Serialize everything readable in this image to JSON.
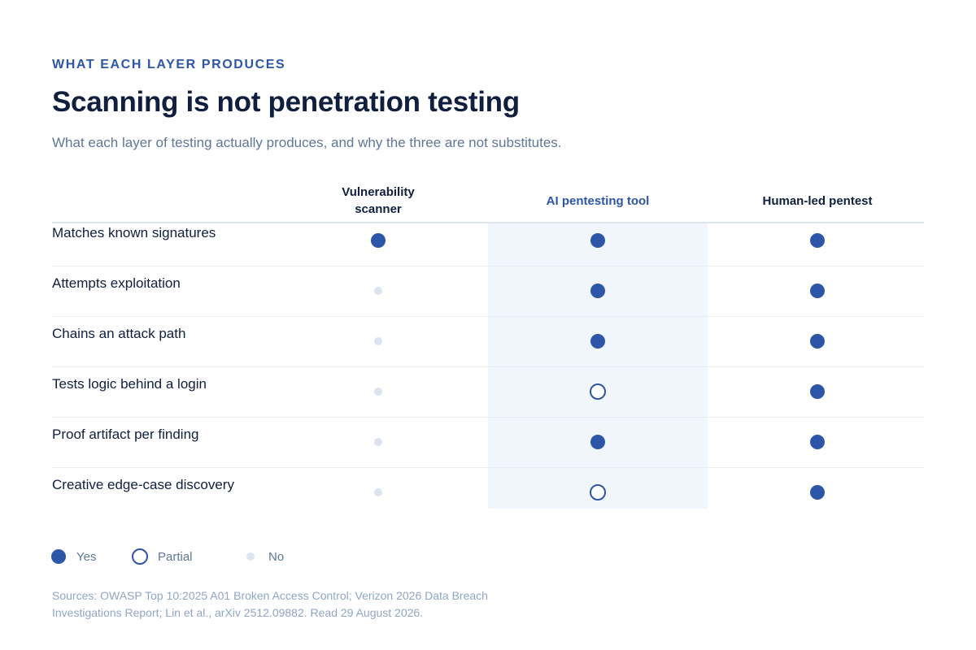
{
  "header": {
    "eyebrow": "WHAT EACH LAYER PRODUCES",
    "title": "Scanning is not penetration testing",
    "subtitle": "What each layer of testing actually produces, and why the three are not substitutes."
  },
  "table": {
    "columns": [
      "Vulnerability scanner",
      "AI pentesting tool",
      "Human-led pentest"
    ],
    "highlighted_column": "AI pentesting tool",
    "rows": [
      {
        "label": "Matches known signatures",
        "values": [
          "yes",
          "yes",
          "yes"
        ]
      },
      {
        "label": "Attempts exploitation",
        "values": [
          "no",
          "yes",
          "yes"
        ]
      },
      {
        "label": "Chains an attack path",
        "values": [
          "no",
          "yes",
          "yes"
        ]
      },
      {
        "label": "Tests logic behind a login",
        "values": [
          "no",
          "partial",
          "yes"
        ]
      },
      {
        "label": "Proof artifact per finding",
        "values": [
          "no",
          "yes",
          "yes"
        ]
      },
      {
        "label": "Creative edge-case discovery",
        "values": [
          "no",
          "partial",
          "yes"
        ]
      }
    ]
  },
  "legend": {
    "yes": "Yes",
    "partial": "Partial",
    "no": "No"
  },
  "sources": "Sources: OWASP Top 10:2025 A01 Broken Access Control; Verizon 2026 Data Breach Investigations Report; Lin et al., arXiv 2512.09882. Read 29 August 2026.",
  "colors": {
    "accent": "#2d56a8",
    "heading": "#0f1f3d",
    "muted": "#5f7796",
    "no_dot": "#dbe4f0",
    "highlight_bg": "#f1f6fd"
  }
}
